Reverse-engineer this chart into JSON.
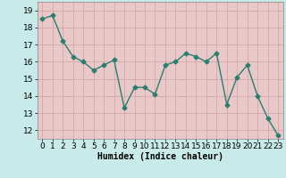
{
  "x": [
    0,
    1,
    2,
    3,
    4,
    5,
    6,
    7,
    8,
    9,
    10,
    11,
    12,
    13,
    14,
    15,
    16,
    17,
    18,
    19,
    20,
    21,
    22,
    23
  ],
  "y": [
    18.5,
    18.7,
    17.2,
    16.3,
    16.0,
    15.5,
    15.8,
    16.1,
    13.3,
    14.5,
    14.5,
    14.1,
    15.8,
    16.0,
    16.5,
    16.3,
    16.0,
    16.5,
    13.5,
    15.1,
    15.8,
    14.0,
    12.7,
    11.7
  ],
  "line_color": "#2d7d6e",
  "marker": "D",
  "markersize": 2.5,
  "linewidth": 1.0,
  "bg_color": "#c8eae8",
  "grid_color": "#d0a0a0",
  "xlabel": "Humidex (Indice chaleur)",
  "ylabel": "",
  "xlim": [
    -0.5,
    23.5
  ],
  "ylim": [
    11.5,
    19.5
  ],
  "yticks": [
    12,
    13,
    14,
    15,
    16,
    17,
    18,
    19
  ],
  "xticks": [
    0,
    1,
    2,
    3,
    4,
    5,
    6,
    7,
    8,
    9,
    10,
    11,
    12,
    13,
    14,
    15,
    16,
    17,
    18,
    19,
    20,
    21,
    22,
    23
  ],
  "xlabel_fontsize": 7,
  "tick_fontsize": 6.5,
  "axis_bg_color": "#e8c8c8"
}
